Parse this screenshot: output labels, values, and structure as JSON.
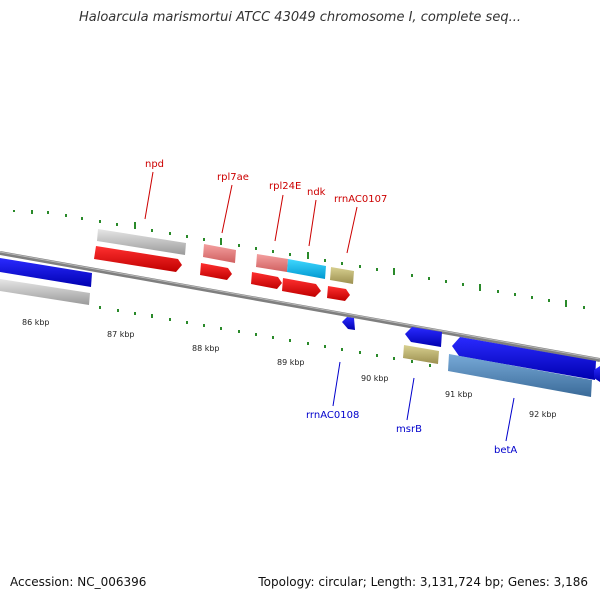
{
  "title": "Haloarcula marismortui ATCC 43049 chromosome I, complete seq...",
  "footer": {
    "accession": "Accession: NC_006396",
    "summary": "Topology: circular; Length: 3,131,724 bp; Genes: 3,186"
  },
  "colors": {
    "backbone": "#7f7f7f",
    "forward_tick": "#2a8a2a",
    "label_forward": "#cc0000",
    "label_reverse": "#0000cc"
  },
  "scale_labels": [
    "86 kbp",
    "87 kbp",
    "88 kbp",
    "89 kbp",
    "90 kbp",
    "91 kbp",
    "92 kbp"
  ],
  "gene_labels": {
    "above": [
      "npd",
      "rpl7ae",
      "rpl24E",
      "ndk",
      "rrnAC0107"
    ],
    "below": [
      "rrnAC0108",
      "msrB",
      "betA"
    ]
  }
}
